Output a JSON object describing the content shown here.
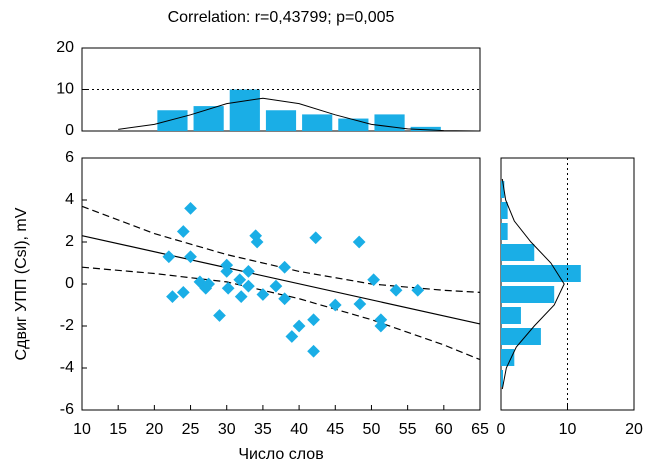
{
  "chart_data": [
    {
      "type": "scatter",
      "title": "Correlation: r=0,43799; p=0,005",
      "x_label": "Число слов",
      "y_label": "Сдвиг УПП (Csl), mV",
      "x": [
        22.5,
        22,
        24,
        25,
        24,
        25,
        26.3,
        27.1,
        27.5,
        29,
        30,
        30,
        30.2,
        31.8,
        32,
        33,
        33,
        34,
        34.2,
        35,
        36.8,
        38,
        38,
        39,
        40,
        42,
        42,
        42.3,
        45,
        48.3,
        48.4,
        50.3,
        51.3,
        51.3,
        53.4,
        56.4
      ],
      "values": [
        -0.6,
        1.3,
        2.5,
        3.6,
        -0.4,
        1.3,
        0.1,
        -0.2,
        0,
        -1.5,
        0.9,
        0.6,
        -0.2,
        0.2,
        -0.6,
        0.6,
        -0.1,
        2.3,
        2,
        -0.5,
        -0.1,
        0.8,
        -0.7,
        -2.5,
        -2,
        -1.7,
        -3.2,
        2.2,
        -1,
        2,
        -0.95,
        0.2,
        -1.7,
        -2,
        -0.3,
        -0.3
      ],
      "color": "#1aaee6",
      "lines": [
        {
          "style": "solid",
          "x": [
            10,
            65
          ],
          "y": [
            2.3,
            -1.9
          ]
        },
        {
          "style": "dashed",
          "x": [
            10,
            20,
            30,
            40,
            50,
            60,
            65
          ],
          "y": [
            3.7,
            2.4,
            1.4,
            0.6,
            0,
            -0.3,
            -0.4
          ]
        },
        {
          "style": "dashed",
          "x": [
            10,
            20,
            30,
            40,
            50,
            60,
            65
          ],
          "y": [
            0.8,
            0.5,
            0.1,
            -0.7,
            -1.7,
            -2.9,
            -3.6
          ]
        }
      ],
      "xlim": [
        10,
        65
      ],
      "xticks": [
        10,
        15,
        20,
        25,
        30,
        35,
        40,
        45,
        50,
        55,
        60,
        65
      ],
      "ylim": [
        -6,
        6
      ],
      "yticks": [
        -6,
        -4,
        -2,
        0,
        2,
        4,
        6
      ]
    },
    {
      "type": "histogram",
      "orientation": "vertical",
      "bins": [
        20,
        25,
        30,
        35,
        40,
        45,
        50,
        55,
        60
      ],
      "values": [
        5,
        6,
        10,
        5,
        4,
        3,
        4,
        1
      ],
      "color": "#1aaee6",
      "fit": {
        "x": [
          15,
          20,
          25,
          30,
          35,
          40,
          45,
          50,
          55,
          60,
          65
        ],
        "y": [
          0.4,
          1.6,
          3.9,
          6.6,
          7.9,
          6.6,
          3.9,
          1.6,
          0.5,
          0.1,
          0
        ]
      },
      "reference_line": 10,
      "xlim": [
        10,
        65
      ],
      "ylim": [
        0,
        20
      ],
      "yticks": [
        0,
        10,
        20
      ]
    },
    {
      "type": "histogram",
      "orientation": "horizontal",
      "bins": [
        -5,
        -4,
        -3,
        -2,
        -1,
        0,
        1,
        2,
        3,
        4,
        5
      ],
      "values": [
        0.3,
        2,
        6,
        3,
        8,
        12,
        5,
        1,
        1,
        0.5
      ],
      "color": "#1aaee6",
      "fit": {
        "x": [
          0.2,
          0.8,
          2.3,
          5,
          8,
          9.5,
          7.5,
          4.5,
          2,
          0.7,
          0.2
        ],
        "y": [
          -5,
          -4,
          -3,
          -2,
          -1,
          0,
          1,
          2,
          3,
          4,
          5
        ]
      },
      "reference_line": 10,
      "xlim": [
        0,
        20
      ],
      "xticks": [
        0,
        10,
        20
      ],
      "ylim": [
        -6,
        6
      ]
    }
  ]
}
